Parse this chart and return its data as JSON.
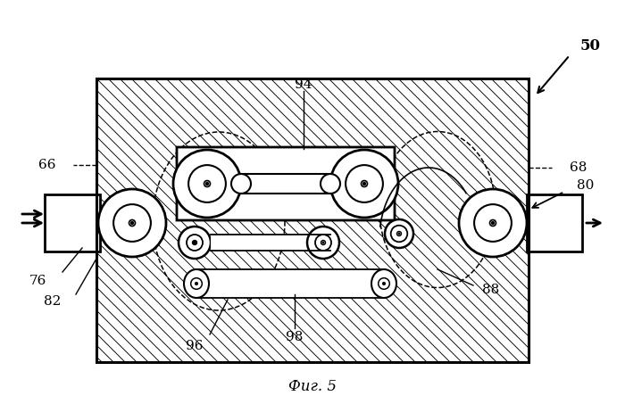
{
  "fig_label": "Фиг. 5",
  "label_50": "50",
  "label_94": "94",
  "label_66": "66",
  "label_68": "68",
  "label_76": "76",
  "label_82": "82",
  "label_80": "80",
  "label_88": "88",
  "label_96": "96",
  "label_98": "98",
  "bg_color": "#ffffff"
}
